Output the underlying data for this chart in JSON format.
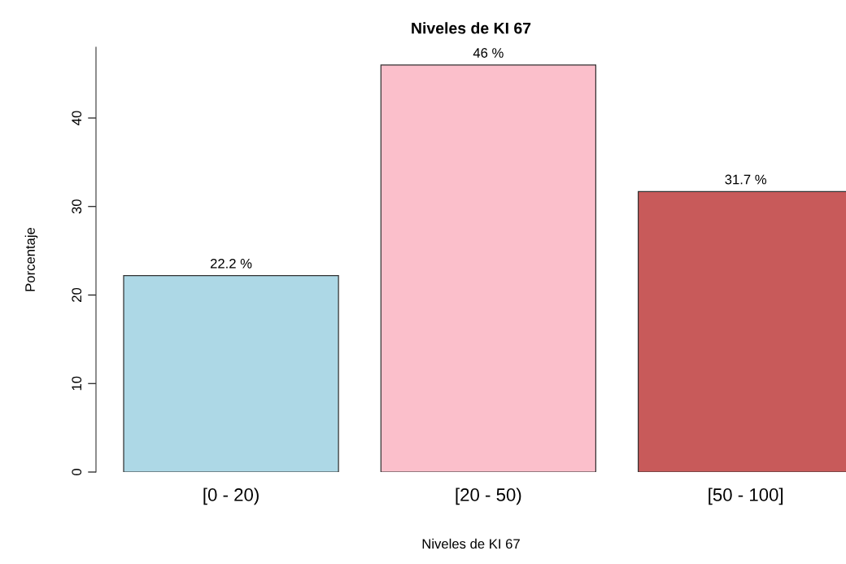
{
  "chart_data": {
    "type": "bar",
    "title": "Niveles de KI 67",
    "xlabel": "Niveles de KI 67",
    "ylabel": "Porcentaje",
    "categories": [
      "[0 - 20)",
      "[20 - 50)",
      "[50 - 100]"
    ],
    "values": [
      22.2,
      46,
      31.7
    ],
    "colors": [
      "#add8e6",
      "#fbbfcb",
      "#c85a5a"
    ],
    "value_labels": [
      "22.2 %",
      "46 %",
      "31.7 %"
    ],
    "ylim": [
      0,
      48
    ],
    "yticks": [
      0,
      10,
      20,
      30,
      40
    ],
    "grid": false,
    "legend": false
  }
}
